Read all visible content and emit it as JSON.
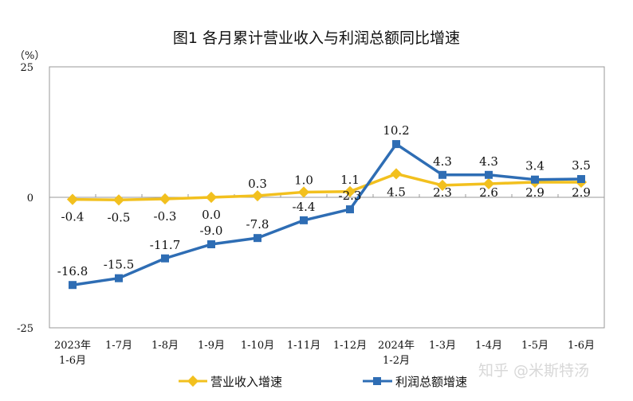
{
  "chart_data": {
    "type": "line",
    "title": "图1  各月累计营业收入与利润总额同比增速",
    "ylabel": "（%）",
    "ylim": [
      -25,
      25
    ],
    "yticks": [
      "25",
      "0",
      "-25"
    ],
    "categories": [
      [
        "2023年",
        "1-6月"
      ],
      [
        "1-7月"
      ],
      [
        "1-8月"
      ],
      [
        "1-9月"
      ],
      [
        "1-10月"
      ],
      [
        "1-11月"
      ],
      [
        "1-12月"
      ],
      [
        "2024年",
        "1-2月"
      ],
      [
        "1-3月"
      ],
      [
        "1-4月"
      ],
      [
        "1-5月"
      ],
      [
        "1-6月"
      ]
    ],
    "series": [
      {
        "name": "营业收入增速",
        "color": "#F2C01E",
        "marker": "diamond",
        "values": [
          -0.4,
          -0.5,
          -0.3,
          0.0,
          0.3,
          1.0,
          1.1,
          4.5,
          2.3,
          2.6,
          2.9,
          2.9
        ],
        "labels": [
          "-0.4",
          "-0.5",
          "-0.3",
          "0.0",
          "0.3",
          "1.0",
          "1.1",
          "4.5",
          "2.3",
          "2.6",
          "2.9",
          "2.9"
        ]
      },
      {
        "name": "利润总额增速",
        "color": "#2E6DB4",
        "marker": "square",
        "values": [
          -16.8,
          -15.5,
          -11.7,
          -9.0,
          -7.8,
          -4.4,
          -2.3,
          10.2,
          4.3,
          4.3,
          3.4,
          3.5
        ],
        "labels": [
          "-16.8",
          "-15.5",
          "-11.7",
          "-9.0",
          "-7.8",
          "-4.4",
          "-2.3",
          "10.2",
          "4.3",
          "4.3",
          "3.4",
          "3.5"
        ]
      }
    ],
    "legend": "bottom",
    "grid": false
  },
  "watermark": "知乎 @米斯特汤"
}
